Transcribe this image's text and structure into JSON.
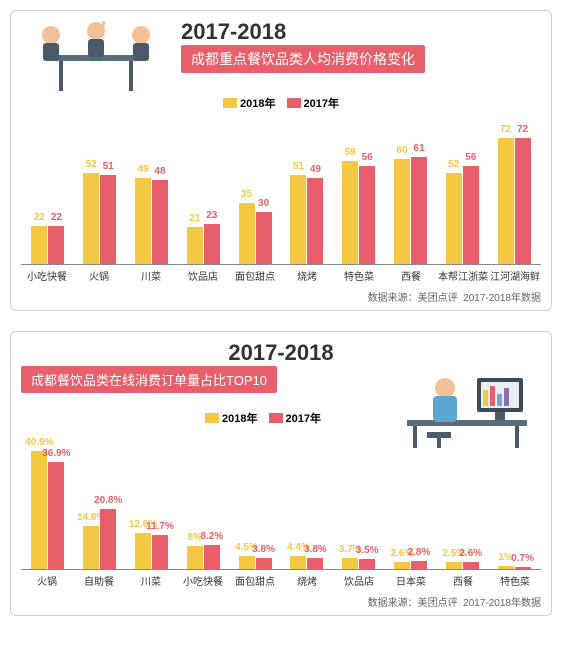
{
  "colors": {
    "y2018": "#f4c843",
    "y2017": "#e85f6b",
    "subtitle_bg": "#e85f6b",
    "border": "#d0d0d0"
  },
  "legend": {
    "y2018": "2018年",
    "y2017": "2017年"
  },
  "source_prefix": "数据来源：美团点评",
  "source_suffix": "2017-2018年数据",
  "chart1": {
    "year": "2017-2018",
    "subtitle": "成都重点餐饮品类人均消费价格变化",
    "max": 80,
    "categories": [
      "小吃快餐",
      "火锅",
      "川菜",
      "饮品店",
      "面包甜点",
      "烧烤",
      "特色菜",
      "西餐",
      "本帮江浙菜",
      "江河湖海鲜"
    ],
    "y2018": [
      22,
      52,
      49,
      21,
      35,
      51,
      59,
      60,
      52,
      72
    ],
    "y2017": [
      22,
      51,
      48,
      23,
      30,
      49,
      56,
      61,
      56,
      72
    ]
  },
  "chart2": {
    "year": "2017-2018",
    "subtitle": "成都餐饮品类在线消费订单量占比TOP10",
    "max": 45,
    "suffix": "%",
    "categories": [
      "火锅",
      "自助餐",
      "川菜",
      "小吃快餐",
      "面包甜点",
      "烧烤",
      "饮品店",
      "日本菜",
      "西餐",
      "特色菜"
    ],
    "y2018": [
      40.9,
      14.8,
      12.6,
      8.0,
      4.5,
      4.4,
      3.7,
      2.6,
      2.5,
      1.0
    ],
    "y2017": [
      36.9,
      20.8,
      11.7,
      8.2,
      3.8,
      3.8,
      3.5,
      2.8,
      2.6,
      0.7
    ]
  }
}
